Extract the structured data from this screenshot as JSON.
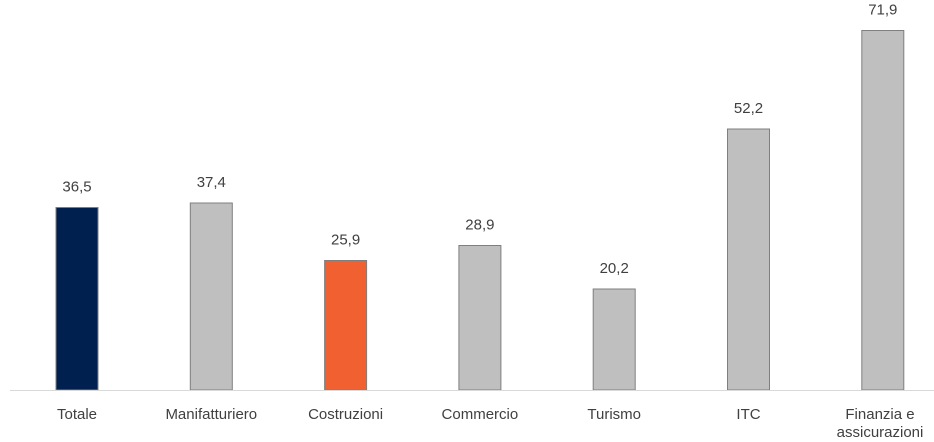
{
  "chart_data": {
    "type": "bar",
    "categories": [
      "Totale",
      "Manifatturiero",
      "Costruzioni",
      "Commercio",
      "Turismo",
      "ITC",
      "Finanzia e assicurazioni"
    ],
    "category_lines": [
      [
        "Totale"
      ],
      [
        "Manifatturiero"
      ],
      [
        "Costruzioni"
      ],
      [
        "Commercio"
      ],
      [
        "Turismo"
      ],
      [
        "ITC"
      ],
      [
        "Finanzia e",
        "assicurazioni"
      ]
    ],
    "values": [
      36.5,
      37.4,
      25.9,
      28.9,
      20.2,
      52.2,
      71.9
    ],
    "value_labels": [
      "36,5",
      "37,4",
      "25,9",
      "28,9",
      "20,2",
      "52,2",
      "71,9"
    ],
    "colors": [
      "#002050",
      "#BFBFBF",
      "#F06030",
      "#BFBFBF",
      "#BFBFBF",
      "#BFBFBF",
      "#BFBFBF"
    ],
    "bar_stroke": "#7F7F7F",
    "baseline_color": "#D9D9D9",
    "title": "",
    "xlabel": "",
    "ylabel": "",
    "ylim": [
      0,
      80
    ],
    "grid": false,
    "legend": "none"
  }
}
